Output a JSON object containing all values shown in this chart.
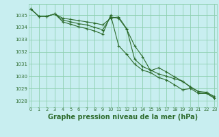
{
  "bg_color": "#c8eef0",
  "grid_color": "#8ecfb0",
  "line_color": "#2d6b2d",
  "marker_color": "#2d6b2d",
  "xlabel": "Graphe pression niveau de la mer (hPa)",
  "xlabel_fontsize": 7.0,
  "ylim": [
    1027.5,
    1035.9
  ],
  "yticks": [
    1028,
    1029,
    1030,
    1031,
    1032,
    1033,
    1034,
    1035
  ],
  "xticks": [
    0,
    1,
    2,
    3,
    4,
    5,
    6,
    7,
    8,
    9,
    10,
    11,
    12,
    13,
    14,
    15,
    16,
    17,
    18,
    19,
    20,
    21,
    22,
    23
  ],
  "series": [
    [
      1035.5,
      1034.9,
      1034.9,
      1035.1,
      1034.75,
      1034.65,
      1034.55,
      1034.45,
      1034.35,
      1034.2,
      1034.75,
      1034.85,
      1033.9,
      1031.4,
      1030.8,
      1030.5,
      1030.2,
      1030.0,
      1029.8,
      1029.6,
      1029.15,
      1028.75,
      1028.7,
      1028.35
    ],
    [
      1035.5,
      1034.9,
      1034.9,
      1035.1,
      1034.45,
      1034.25,
      1034.05,
      1033.9,
      1033.7,
      1033.45,
      1035.0,
      1032.5,
      1031.8,
      1031.0,
      1030.5,
      1030.3,
      1029.9,
      1029.7,
      1029.3,
      1028.9,
      1029.0,
      1028.6,
      1028.6,
      1028.2
    ],
    [
      1035.5,
      1034.9,
      1034.9,
      1035.1,
      1034.6,
      1034.45,
      1034.3,
      1034.2,
      1034.0,
      1033.8,
      1034.85,
      1034.75,
      1033.85,
      1032.5,
      1031.6,
      1030.45,
      1030.7,
      1030.35,
      1029.95,
      1029.6,
      1029.1,
      1028.75,
      1028.65,
      1028.25
    ]
  ]
}
